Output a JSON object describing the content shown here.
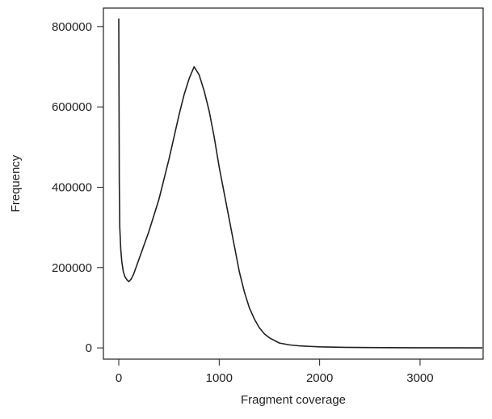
{
  "chart_data": {
    "type": "line",
    "xlabel": "Fragment coverage",
    "ylabel": "Frequency",
    "x": [
      0,
      5,
      10,
      20,
      30,
      45,
      60,
      80,
      100,
      125,
      150,
      200,
      250,
      300,
      350,
      400,
      450,
      500,
      550,
      600,
      650,
      700,
      750,
      800,
      850,
      900,
      950,
      1000,
      1050,
      1100,
      1150,
      1200,
      1250,
      1300,
      1350,
      1400,
      1450,
      1500,
      1600,
      1700,
      1800,
      2000,
      2250,
      2500,
      3000,
      3620
    ],
    "values": [
      820000,
      420000,
      300000,
      245000,
      215000,
      190000,
      178000,
      170000,
      165000,
      172000,
      185000,
      220000,
      255000,
      290000,
      330000,
      370000,
      420000,
      470000,
      525000,
      580000,
      630000,
      670000,
      700000,
      680000,
      640000,
      590000,
      525000,
      450000,
      385000,
      320000,
      255000,
      190000,
      140000,
      100000,
      72000,
      50000,
      35000,
      25000,
      12000,
      7500,
      5000,
      2500,
      1400,
      800,
      300,
      100
    ],
    "color": "#231f20",
    "xlim": [
      -153,
      3628
    ],
    "ylim": [
      -28000,
      846000
    ],
    "xticks": [
      0,
      1000,
      2000,
      3000
    ],
    "yticks": [
      0,
      200000,
      400000,
      600000,
      800000
    ]
  }
}
